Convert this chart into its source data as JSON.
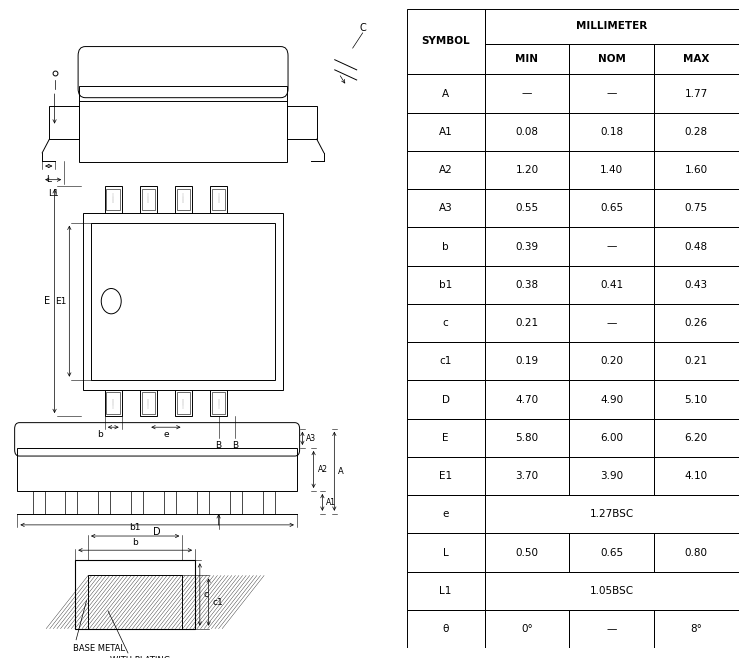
{
  "rows": [
    [
      "A",
      "—",
      "—",
      "1.77"
    ],
    [
      "A1",
      "0.08",
      "0.18",
      "0.28"
    ],
    [
      "A2",
      "1.20",
      "1.40",
      "1.60"
    ],
    [
      "A3",
      "0.55",
      "0.65",
      "0.75"
    ],
    [
      "b",
      "0.39",
      "—",
      "0.48"
    ],
    [
      "b1",
      "0.38",
      "0.41",
      "0.43"
    ],
    [
      "c",
      "0.21",
      "—",
      "0.26"
    ],
    [
      "c1",
      "0.19",
      "0.20",
      "0.21"
    ],
    [
      "D",
      "4.70",
      "4.90",
      "5.10"
    ],
    [
      "E",
      "5.80",
      "6.00",
      "6.20"
    ],
    [
      "E1",
      "3.70",
      "3.90",
      "4.10"
    ],
    [
      "e",
      "1.27BSC",
      "",
      ""
    ],
    [
      "L",
      "0.50",
      "0.65",
      "0.80"
    ],
    [
      "L1",
      "1.05BSC",
      "",
      ""
    ],
    [
      "θ",
      "0°",
      "—",
      "8°"
    ]
  ],
  "bg_color": "#ffffff",
  "line_color": "#000000",
  "text_color": "#000000",
  "fig_w": 7.46,
  "fig_h": 6.58,
  "dpi": 100
}
